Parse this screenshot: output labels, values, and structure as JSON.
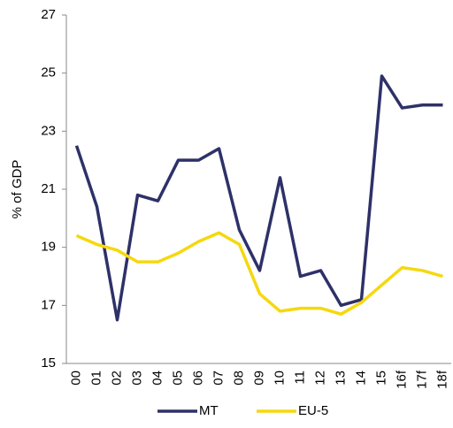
{
  "chart_data": {
    "type": "line",
    "y_label": "% of GDP",
    "categories": [
      "00",
      "01",
      "02",
      "03",
      "04",
      "05",
      "06",
      "07",
      "08",
      "09",
      "10",
      "11",
      "12",
      "13",
      "14",
      "15",
      "16f",
      "17f",
      "18f"
    ],
    "series": [
      {
        "name": "MT",
        "color": "#2e3168",
        "values": [
          22.5,
          20.4,
          16.5,
          20.8,
          20.6,
          22.0,
          22.0,
          22.4,
          19.6,
          18.2,
          21.4,
          18.0,
          18.2,
          17.0,
          17.2,
          24.9,
          23.8,
          23.9,
          23.9
        ]
      },
      {
        "name": "EU-5",
        "color": "#f5d80f",
        "values": [
          19.4,
          19.1,
          18.9,
          18.5,
          18.5,
          18.8,
          19.2,
          19.5,
          19.1,
          17.4,
          16.8,
          16.9,
          16.9,
          16.7,
          17.1,
          17.7,
          18.3,
          18.2,
          18.0
        ]
      }
    ],
    "ylim": [
      15,
      27
    ],
    "yticks": [
      15,
      17,
      19,
      21,
      23,
      25,
      27
    ],
    "grid": false,
    "legend": "bottom"
  }
}
